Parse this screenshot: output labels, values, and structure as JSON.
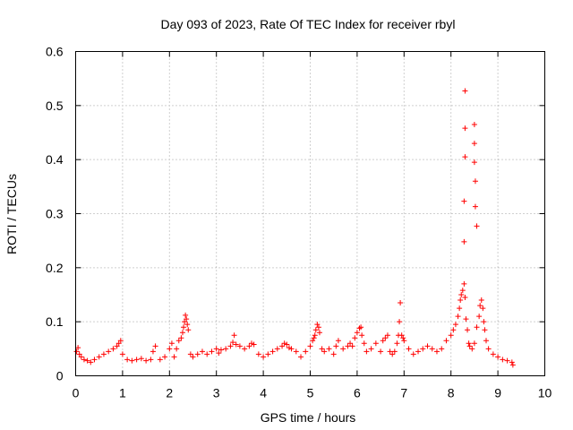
{
  "chart_data": {
    "type": "scatter",
    "title": "Day 093 of 2023, Rate Of TEC Index for receiver rbyl",
    "xlabel": "GPS time / hours",
    "ylabel": "ROTI / TECUs",
    "xlim": [
      0,
      10
    ],
    "ylim": [
      0,
      0.6
    ],
    "xticks": [
      0,
      1,
      2,
      3,
      4,
      5,
      6,
      7,
      8,
      9,
      10
    ],
    "yticks": [
      0,
      0.1,
      0.2,
      0.3,
      0.4,
      0.5,
      0.6
    ],
    "ytick_labels": [
      "0",
      "0.1",
      "0.2",
      "0.3",
      "0.4",
      "0.5",
      "0.6"
    ],
    "grid": true,
    "marker": "+",
    "color": "#ff0000",
    "series": [
      {
        "name": "ROTI",
        "points": [
          [
            0.02,
            0.045
          ],
          [
            0.05,
            0.052
          ],
          [
            0.08,
            0.04
          ],
          [
            0.12,
            0.035
          ],
          [
            0.18,
            0.03
          ],
          [
            0.25,
            0.028
          ],
          [
            0.32,
            0.025
          ],
          [
            0.4,
            0.03
          ],
          [
            0.5,
            0.035
          ],
          [
            0.6,
            0.04
          ],
          [
            0.7,
            0.045
          ],
          [
            0.8,
            0.05
          ],
          [
            0.88,
            0.055
          ],
          [
            0.92,
            0.06
          ],
          [
            0.96,
            0.065
          ],
          [
            1.0,
            0.04
          ],
          [
            1.1,
            0.03
          ],
          [
            1.2,
            0.028
          ],
          [
            1.3,
            0.03
          ],
          [
            1.4,
            0.032
          ],
          [
            1.5,
            0.028
          ],
          [
            1.6,
            0.03
          ],
          [
            1.65,
            0.045
          ],
          [
            1.7,
            0.055
          ],
          [
            1.8,
            0.03
          ],
          [
            1.9,
            0.035
          ],
          [
            2.0,
            0.05
          ],
          [
            2.05,
            0.06
          ],
          [
            2.1,
            0.035
          ],
          [
            2.15,
            0.05
          ],
          [
            2.2,
            0.065
          ],
          [
            2.25,
            0.07
          ],
          [
            2.28,
            0.08
          ],
          [
            2.3,
            0.09
          ],
          [
            2.32,
            0.1
          ],
          [
            2.34,
            0.112
          ],
          [
            2.36,
            0.105
          ],
          [
            2.38,
            0.095
          ],
          [
            2.4,
            0.085
          ],
          [
            2.45,
            0.04
          ],
          [
            2.5,
            0.035
          ],
          [
            2.6,
            0.04
          ],
          [
            2.7,
            0.045
          ],
          [
            2.8,
            0.04
          ],
          [
            2.9,
            0.045
          ],
          [
            3.0,
            0.05
          ],
          [
            3.05,
            0.042
          ],
          [
            3.1,
            0.048
          ],
          [
            3.2,
            0.05
          ],
          [
            3.3,
            0.055
          ],
          [
            3.35,
            0.062
          ],
          [
            3.38,
            0.075
          ],
          [
            3.42,
            0.058
          ],
          [
            3.5,
            0.055
          ],
          [
            3.6,
            0.05
          ],
          [
            3.7,
            0.055
          ],
          [
            3.75,
            0.06
          ],
          [
            3.8,
            0.058
          ],
          [
            3.9,
            0.04
          ],
          [
            4.0,
            0.035
          ],
          [
            4.1,
            0.04
          ],
          [
            4.2,
            0.045
          ],
          [
            4.3,
            0.05
          ],
          [
            4.4,
            0.055
          ],
          [
            4.45,
            0.06
          ],
          [
            4.5,
            0.058
          ],
          [
            4.55,
            0.052
          ],
          [
            4.6,
            0.05
          ],
          [
            4.7,
            0.045
          ],
          [
            4.8,
            0.035
          ],
          [
            4.9,
            0.045
          ],
          [
            5.0,
            0.055
          ],
          [
            5.05,
            0.065
          ],
          [
            5.08,
            0.07
          ],
          [
            5.1,
            0.075
          ],
          [
            5.12,
            0.085
          ],
          [
            5.15,
            0.095
          ],
          [
            5.18,
            0.09
          ],
          [
            5.2,
            0.08
          ],
          [
            5.25,
            0.05
          ],
          [
            5.3,
            0.045
          ],
          [
            5.4,
            0.05
          ],
          [
            5.5,
            0.04
          ],
          [
            5.55,
            0.055
          ],
          [
            5.6,
            0.065
          ],
          [
            5.7,
            0.05
          ],
          [
            5.8,
            0.055
          ],
          [
            5.85,
            0.06
          ],
          [
            5.9,
            0.055
          ],
          [
            5.95,
            0.07
          ],
          [
            6.0,
            0.08
          ],
          [
            6.05,
            0.088
          ],
          [
            6.08,
            0.09
          ],
          [
            6.1,
            0.075
          ],
          [
            6.15,
            0.06
          ],
          [
            6.2,
            0.045
          ],
          [
            6.3,
            0.05
          ],
          [
            6.4,
            0.06
          ],
          [
            6.5,
            0.045
          ],
          [
            6.55,
            0.065
          ],
          [
            6.6,
            0.07
          ],
          [
            6.65,
            0.075
          ],
          [
            6.7,
            0.045
          ],
          [
            6.75,
            0.04
          ],
          [
            6.8,
            0.045
          ],
          [
            6.85,
            0.06
          ],
          [
            6.88,
            0.075
          ],
          [
            6.9,
            0.1
          ],
          [
            6.92,
            0.135
          ],
          [
            6.95,
            0.075
          ],
          [
            6.98,
            0.07
          ],
          [
            7.0,
            0.065
          ],
          [
            7.1,
            0.05
          ],
          [
            7.2,
            0.04
          ],
          [
            7.3,
            0.045
          ],
          [
            7.4,
            0.05
          ],
          [
            7.5,
            0.055
          ],
          [
            7.6,
            0.05
          ],
          [
            7.7,
            0.045
          ],
          [
            7.8,
            0.05
          ],
          [
            7.9,
            0.065
          ],
          [
            8.0,
            0.075
          ],
          [
            8.05,
            0.085
          ],
          [
            8.1,
            0.095
          ],
          [
            8.15,
            0.11
          ],
          [
            8.18,
            0.125
          ],
          [
            8.2,
            0.14
          ],
          [
            8.22,
            0.15
          ],
          [
            8.25,
            0.158
          ],
          [
            8.28,
            0.17
          ],
          [
            8.3,
            0.145
          ],
          [
            8.32,
            0.105
          ],
          [
            8.35,
            0.085
          ],
          [
            8.38,
            0.06
          ],
          [
            8.4,
            0.055
          ],
          [
            8.45,
            0.05
          ],
          [
            8.5,
            0.06
          ],
          [
            8.55,
            0.09
          ],
          [
            8.6,
            0.11
          ],
          [
            8.62,
            0.13
          ],
          [
            8.65,
            0.14
          ],
          [
            8.68,
            0.125
          ],
          [
            8.7,
            0.1
          ],
          [
            8.72,
            0.085
          ],
          [
            8.75,
            0.065
          ],
          [
            8.8,
            0.05
          ],
          [
            8.9,
            0.04
          ],
          [
            9.0,
            0.035
          ],
          [
            9.1,
            0.03
          ],
          [
            9.2,
            0.028
          ],
          [
            9.3,
            0.025
          ],
          [
            9.32,
            0.02
          ],
          [
            8.3,
            0.527
          ],
          [
            8.3,
            0.458
          ],
          [
            8.3,
            0.405
          ],
          [
            8.28,
            0.323
          ],
          [
            8.28,
            0.248
          ],
          [
            8.5,
            0.465
          ],
          [
            8.5,
            0.43
          ],
          [
            8.5,
            0.395
          ],
          [
            8.52,
            0.36
          ],
          [
            8.52,
            0.313
          ],
          [
            8.55,
            0.277
          ]
        ]
      }
    ]
  }
}
